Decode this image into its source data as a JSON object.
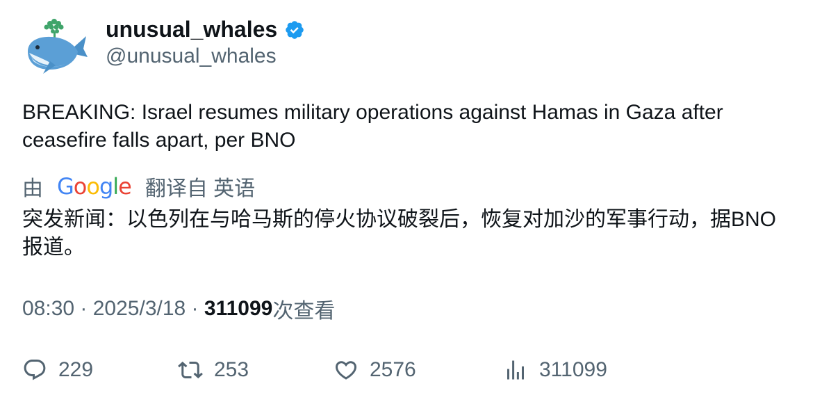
{
  "author": {
    "display_name": "unusual_whales",
    "handle": "@unusual_whales",
    "verified": true,
    "avatar_icon": "whale-avatar-icon",
    "verified_color": "#1d9bf0"
  },
  "tweet": {
    "text": "BREAKING: Israel resumes military operations against Hamas in Gaza after ceasefire falls apart, per BNO"
  },
  "translation": {
    "prefix": "由",
    "provider": "Google",
    "suffix": "翻译自 英语",
    "text": "突发新闻：以色列在与哈马斯的停火协议破裂后，恢复对加沙的军事行动，据BNO报道。"
  },
  "meta": {
    "time": "08:30",
    "separator": " · ",
    "date": "2025/3/18",
    "views_count": "311099",
    "views_suffix": "次查看"
  },
  "actions": {
    "replies": "229",
    "retweets": "253",
    "likes": "2576",
    "views": "311099"
  },
  "colors": {
    "text": "#0f1419",
    "secondary": "#536471",
    "accent": "#1d9bf0"
  }
}
